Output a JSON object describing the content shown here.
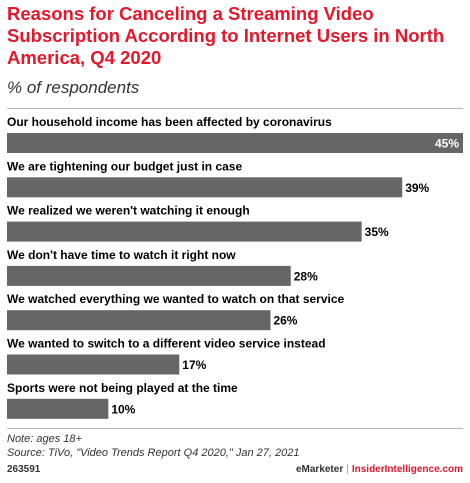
{
  "title": "Reasons for Canceling a Streaming Video Subscription According to Internet Users in North America, Q4 2020",
  "subtitle": "% of respondents",
  "chart_data": {
    "type": "bar",
    "orientation": "horizontal",
    "categories": [
      "Our household income has been affected by coronavirus",
      "We are tightening our budget just in case",
      "We realized we weren't watching it enough",
      "We don't have time to watch it right now",
      "We watched everything we wanted to watch on that service",
      "We wanted to switch to a different video service instead",
      "Sports were not being played at the time"
    ],
    "values": [
      45,
      39,
      35,
      28,
      26,
      17,
      10
    ],
    "value_labels": [
      "45%",
      "39%",
      "35%",
      "28%",
      "26%",
      "17%",
      "10%"
    ],
    "xlim": [
      0,
      45
    ],
    "grid": false,
    "bar_color": "#666666"
  },
  "footer": {
    "note": "Note: ages 18+",
    "source": "Source: TiVo, \"Video Trends Report Q4 2020,\" Jan 27, 2021",
    "id": "263591",
    "brand_emarketer": "eMarketer",
    "brand_separator": "|",
    "brand_insider": "InsiderIntelligence.com"
  },
  "colors": {
    "title": "#e4172b",
    "bar": "#666666",
    "text": "#000000"
  }
}
